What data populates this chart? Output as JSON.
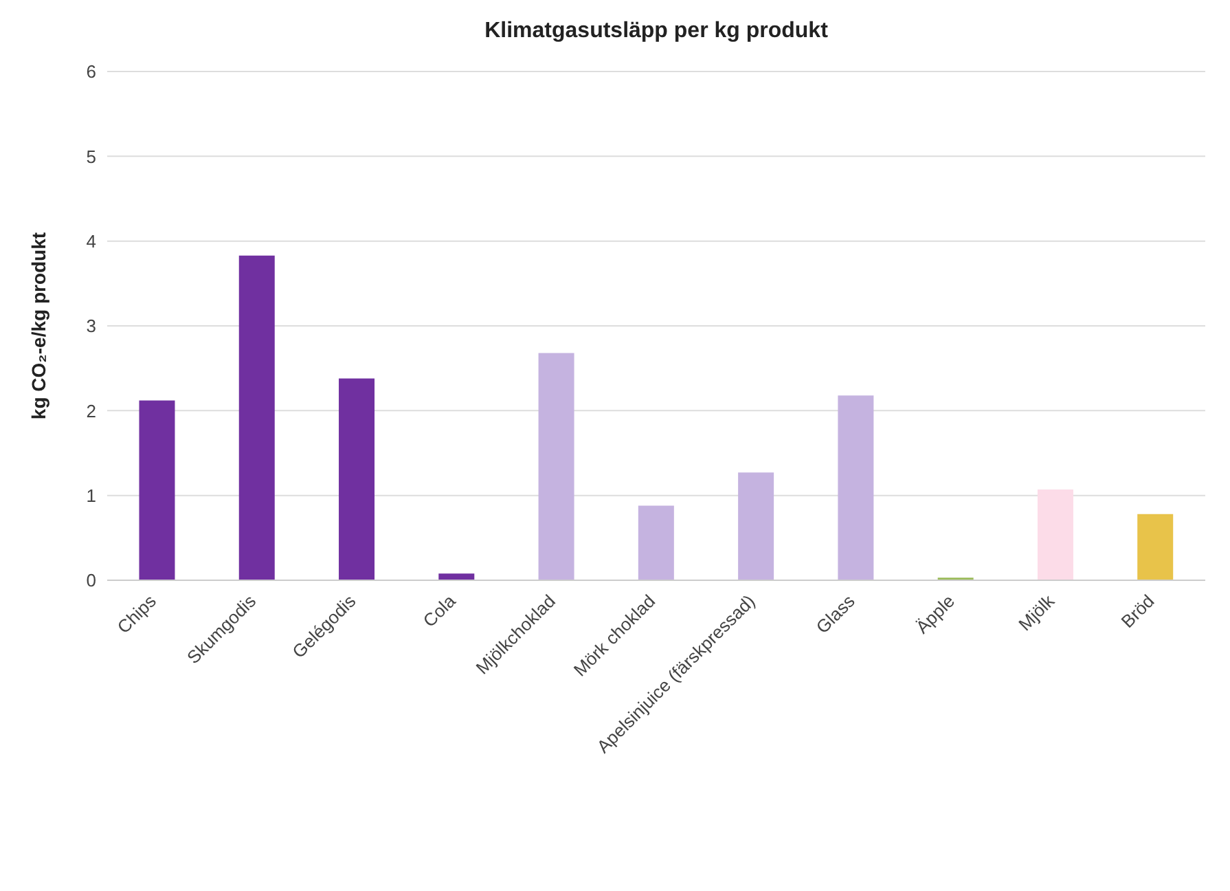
{
  "chart_data": {
    "type": "bar",
    "title": "Klimatgasutsläpp per kg produkt",
    "ylabel": "kg CO₂-e/kg produkt",
    "categories": [
      "Chips",
      "Skumgodis",
      "Gelégodis",
      "Cola",
      "Mjölkchoklad",
      "Mörk choklad",
      "Apelsinjuice (färskpressad)",
      "Glass",
      "Äpple",
      "Mjölk",
      "Bröd"
    ],
    "values": [
      2.12,
      3.83,
      2.38,
      0.08,
      2.68,
      0.88,
      1.27,
      2.18,
      0.03,
      1.07,
      0.78
    ],
    "colors": [
      "#7030a0",
      "#7030a0",
      "#7030a0",
      "#7030a0",
      "#c5b3e0",
      "#c5b3e0",
      "#c5b3e0",
      "#c5b3e0",
      "#9bbb59",
      "#fcdce8",
      "#e8c34a"
    ],
    "ylim": [
      0,
      6
    ],
    "yticks": [
      0,
      1,
      2,
      3,
      4,
      5,
      6
    ],
    "grid": "y"
  }
}
